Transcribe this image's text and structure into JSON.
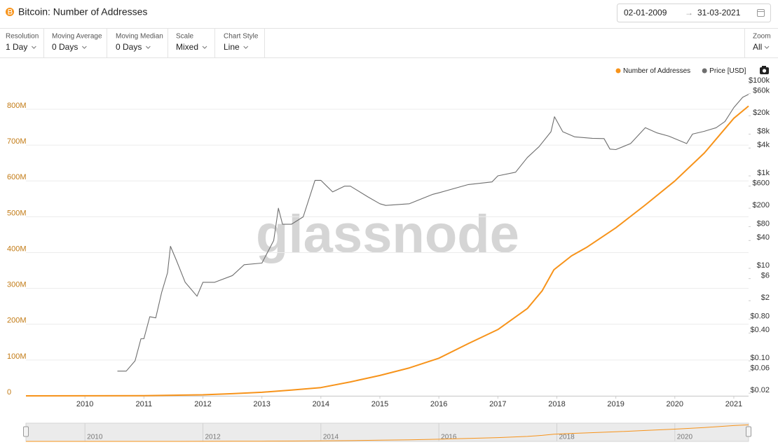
{
  "header": {
    "title": "Bitcoin: Number of Addresses",
    "date_from": "02-01-2009",
    "date_arrow": "→",
    "date_to": "31-03-2021"
  },
  "controls": [
    {
      "label": "Resolution",
      "value": "1 Day"
    },
    {
      "label": "Moving Average",
      "value": "0 Days"
    },
    {
      "label": "Moving Median",
      "value": "0 Days"
    },
    {
      "label": "Scale",
      "value": "Mixed"
    },
    {
      "label": "Chart Style",
      "value": "Line"
    }
  ],
  "zoom": {
    "label": "Zoom",
    "value": "All"
  },
  "chart_data": {
    "type": "line",
    "watermark": "glassnode",
    "xlim": [
      2009.0,
      2021.25
    ],
    "xticks": [
      2010,
      2011,
      2012,
      2013,
      2014,
      2015,
      2016,
      2017,
      2018,
      2019,
      2020,
      2021
    ],
    "ylim": [
      0,
      890000000
    ],
    "yticks": [
      0,
      {
        "value": 100000000,
        "label": "100M"
      },
      {
        "value": 200000000,
        "label": "200M"
      },
      {
        "value": 300000000,
        "label": "300M"
      },
      {
        "value": 400000000,
        "label": "400M"
      },
      {
        "value": 500000000,
        "label": "500M"
      },
      {
        "value": 600000000,
        "label": "600M"
      },
      {
        "value": 700000000,
        "label": "700M"
      },
      {
        "value": 800000000,
        "label": "800M"
      }
    ],
    "y2lim": [
      0.0175,
      137000
    ],
    "y2_log": true,
    "y2ticks": [
      {
        "value": 100000,
        "label": "$100k"
      },
      {
        "value": 60000,
        "label": "$60k"
      },
      {
        "value": 20000,
        "label": "$20k"
      },
      {
        "value": 8000,
        "label": "$8k"
      },
      {
        "value": 4000,
        "label": "$4k"
      },
      {
        "value": 1000,
        "label": "$1k"
      },
      {
        "value": 600,
        "label": "$600"
      },
      {
        "value": 200,
        "label": "$200"
      },
      {
        "value": 80,
        "label": "$80"
      },
      {
        "value": 40,
        "label": "$40"
      },
      {
        "value": 10,
        "label": "$10"
      },
      {
        "value": 6,
        "label": "$6"
      },
      {
        "value": 2,
        "label": "$2"
      },
      {
        "value": 0.8,
        "label": "$0.80"
      },
      {
        "value": 0.4,
        "label": "$0.40"
      },
      {
        "value": 0.1,
        "label": "$0.10"
      },
      {
        "value": 0.06,
        "label": "$0.06"
      },
      {
        "value": 0.02,
        "label": "$0.02"
      }
    ],
    "grid": true,
    "navigator_xticks": [
      2010,
      2012,
      2014,
      2016,
      2018,
      2020
    ],
    "series": [
      {
        "name": "Number of Addresses",
        "color": "#f7931a",
        "x": [
          2009.0,
          2010.0,
          2011.0,
          2012.0,
          2012.5,
          2013.0,
          2013.5,
          2014.0,
          2014.5,
          2015.0,
          2015.5,
          2016.0,
          2016.5,
          2017.0,
          2017.5,
          2017.75,
          2017.95,
          2018.25,
          2018.5,
          2019.0,
          2019.5,
          2020.0,
          2020.5,
          2021.0,
          2021.25
        ],
        "values": [
          0,
          100000,
          500000,
          3000000,
          6000000,
          10000000,
          16000000,
          23000000,
          39000000,
          57000000,
          78000000,
          105000000,
          146000000,
          185000000,
          244000000,
          293000000,
          352000000,
          391000000,
          414000000,
          469000000,
          533000000,
          600000000,
          678000000,
          775000000,
          809000000
        ]
      },
      {
        "name": "Price [USD]",
        "color": "#6e6e6e",
        "axis": "y2",
        "x": [
          2010.55,
          2010.7,
          2010.85,
          2010.95,
          2011.0,
          2011.1,
          2011.2,
          2011.3,
          2011.4,
          2011.45,
          2011.55,
          2011.7,
          2011.9,
          2012.0,
          2012.2,
          2012.5,
          2012.7,
          2013.0,
          2013.2,
          2013.28,
          2013.35,
          2013.5,
          2013.7,
          2013.9,
          2014.0,
          2014.1,
          2014.2,
          2014.4,
          2014.5,
          2014.8,
          2015.0,
          2015.1,
          2015.5,
          2015.9,
          2016.0,
          2016.5,
          2016.9,
          2017.0,
          2017.3,
          2017.5,
          2017.7,
          2017.9,
          2017.96,
          2018.1,
          2018.3,
          2018.6,
          2018.8,
          2018.9,
          2019.0,
          2019.25,
          2019.5,
          2019.7,
          2019.9,
          2020.2,
          2020.3,
          2020.5,
          2020.7,
          2020.85,
          2021.0,
          2021.15,
          2021.25
        ],
        "values": [
          0.06,
          0.06,
          0.1,
          0.3,
          0.3,
          0.9,
          0.85,
          3,
          8,
          30,
          15,
          5,
          2.5,
          5,
          5,
          7,
          12,
          13,
          40,
          200,
          90,
          90,
          130,
          800,
          800,
          600,
          450,
          600,
          600,
          350,
          250,
          230,
          250,
          400,
          430,
          650,
          740,
          1000,
          1200,
          2500,
          4300,
          9000,
          19000,
          9000,
          7000,
          6500,
          6400,
          3800,
          3700,
          5000,
          11000,
          8500,
          7200,
          5000,
          8000,
          9200,
          11000,
          15000,
          30000,
          50000,
          58000
        ]
      }
    ]
  }
}
